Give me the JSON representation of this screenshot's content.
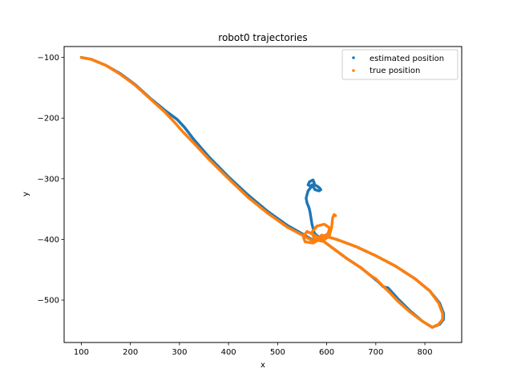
{
  "chart_data": {
    "type": "scatter",
    "title": "robot0 trajectories",
    "xlabel": "x",
    "ylabel": "y",
    "xlim": [
      65,
      875
    ],
    "ylim": [
      -570,
      -82
    ],
    "xticks": [
      100,
      200,
      300,
      400,
      500,
      600,
      700,
      800
    ],
    "yticks": [
      -100,
      -200,
      -300,
      -400,
      -500
    ],
    "ytick_labels": [
      "−100",
      "−200",
      "−300",
      "−400",
      "−500"
    ],
    "grid": false,
    "legend": "top-right",
    "series": [
      {
        "name": "estimated position",
        "color": "#1f77b4",
        "x": [
          100,
          120,
          150,
          180,
          210,
          240,
          270,
          295,
          310,
          330,
          360,
          400,
          440,
          480,
          520,
          555,
          575,
          590,
          620,
          660,
          700,
          740,
          780,
          810,
          830,
          838,
          838,
          830,
          815,
          795,
          770,
          745,
          725,
          715,
          705,
          690,
          670,
          640,
          610,
          590,
          575,
          570,
          568,
          566,
          564,
          560,
          558,
          562,
          570,
          575,
          572,
          565,
          562,
          568,
          575,
          580,
          585,
          588,
          584,
          576,
          570
        ],
        "y": [
          -100,
          -103,
          -113,
          -127,
          -145,
          -167,
          -187,
          -202,
          -215,
          -236,
          -264,
          -297,
          -327,
          -354,
          -377,
          -393,
          -403,
          -393,
          -400,
          -412,
          -427,
          -444,
          -465,
          -485,
          -505,
          -522,
          -532,
          -540,
          -545,
          -535,
          -518,
          -498,
          -480,
          -478,
          -470,
          -460,
          -447,
          -431,
          -413,
          -401,
          -390,
          -375,
          -365,
          -355,
          -348,
          -340,
          -332,
          -320,
          -312,
          -308,
          -302,
          -305,
          -310,
          -313,
          -310,
          -312,
          -315,
          -318,
          -320,
          -318,
          -310
        ]
      },
      {
        "name": "true position",
        "color": "#ff7f0e",
        "x": [
          100,
          120,
          150,
          180,
          210,
          240,
          270,
          290,
          305,
          330,
          360,
          400,
          440,
          480,
          520,
          555,
          575,
          590,
          620,
          660,
          700,
          740,
          780,
          810,
          828,
          836,
          836,
          828,
          815,
          795,
          770,
          745,
          725,
          712,
          700,
          690,
          670,
          640,
          610,
          590,
          575,
          560,
          552,
          556,
          572,
          590,
          603,
          606,
          595,
          580,
          570,
          575,
          590,
          605,
          610,
          612,
          615,
          618
        ],
        "y": [
          -100,
          -103,
          -113,
          -128,
          -146,
          -168,
          -190,
          -207,
          -221,
          -242,
          -268,
          -300,
          -331,
          -357,
          -380,
          -395,
          -404,
          -393,
          -400,
          -412,
          -427,
          -444,
          -465,
          -485,
          -505,
          -522,
          -532,
          -540,
          -545,
          -535,
          -520,
          -502,
          -485,
          -475,
          -465,
          -460,
          -447,
          -431,
          -413,
          -401,
          -393,
          -387,
          -395,
          -404,
          -406,
          -398,
          -390,
          -381,
          -375,
          -378,
          -388,
          -400,
          -403,
          -395,
          -380,
          -365,
          -359,
          -361
        ]
      }
    ]
  }
}
